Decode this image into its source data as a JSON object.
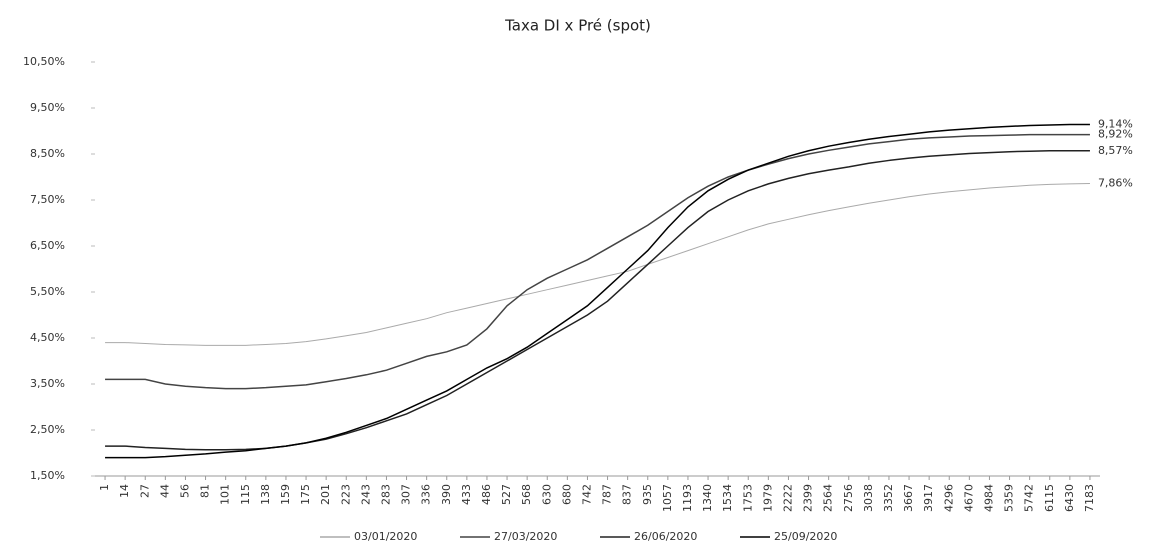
{
  "chart_data": {
    "type": "line",
    "title": "Taxa DI x Pré (spot)",
    "categories": [
      "1",
      "14",
      "27",
      "44",
      "56",
      "81",
      "101",
      "115",
      "138",
      "159",
      "175",
      "201",
      "223",
      "243",
      "283",
      "307",
      "336",
      "390",
      "433",
      "486",
      "527",
      "568",
      "630",
      "680",
      "742",
      "787",
      "837",
      "935",
      "1057",
      "1193",
      "1340",
      "1534",
      "1753",
      "1979",
      "2222",
      "2399",
      "2564",
      "2756",
      "3038",
      "3352",
      "3667",
      "3917",
      "4296",
      "4670",
      "4984",
      "5359",
      "5742",
      "6115",
      "6430",
      "7183"
    ],
    "ylim": [
      1.5,
      10.5
    ],
    "yticks": [
      {
        "value": 1.5,
        "label": "1,50%"
      },
      {
        "value": 2.5,
        "label": "2,50%"
      },
      {
        "value": 3.5,
        "label": "3,50%"
      },
      {
        "value": 4.5,
        "label": "4,50%"
      },
      {
        "value": 5.5,
        "label": "5,50%"
      },
      {
        "value": 6.5,
        "label": "6,50%"
      },
      {
        "value": 7.5,
        "label": "7,50%"
      },
      {
        "value": 8.5,
        "label": "8,50%"
      },
      {
        "value": 9.5,
        "label": "9,50%"
      },
      {
        "value": 10.5,
        "label": "10,50%"
      }
    ],
    "grid": false,
    "legend": "bottom",
    "series": [
      {
        "name": "03/01/2020",
        "color": "#aaaaaa",
        "values": [
          4.4,
          4.4,
          4.38,
          4.36,
          4.35,
          4.34,
          4.34,
          4.34,
          4.36,
          4.38,
          4.42,
          4.48,
          4.55,
          4.62,
          4.72,
          4.82,
          4.92,
          5.05,
          5.15,
          5.25,
          5.35,
          5.45,
          5.55,
          5.65,
          5.75,
          5.85,
          5.95,
          6.1,
          6.25,
          6.4,
          6.55,
          6.7,
          6.85,
          6.98,
          7.08,
          7.18,
          7.27,
          7.35,
          7.43,
          7.5,
          7.57,
          7.63,
          7.68,
          7.72,
          7.76,
          7.79,
          7.82,
          7.84,
          7.85,
          7.86
        ],
        "value_labels": [
          null,
          null,
          null,
          null,
          null,
          null,
          null,
          null,
          null,
          null,
          null,
          null,
          null,
          null,
          null,
          null,
          null,
          null,
          null,
          null,
          null,
          null,
          null,
          null,
          null,
          null,
          null,
          null,
          null,
          null,
          null,
          null,
          null,
          null,
          null,
          null,
          null,
          null,
          null,
          null,
          null,
          null,
          null,
          null,
          null,
          null,
          null,
          null,
          null,
          "7,86%"
        ]
      },
      {
        "name": "27/03/2020",
        "color": "#444444",
        "values": [
          3.6,
          3.6,
          3.6,
          3.5,
          3.45,
          3.42,
          3.4,
          3.4,
          3.42,
          3.45,
          3.48,
          3.55,
          3.62,
          3.7,
          3.8,
          3.95,
          4.1,
          4.2,
          4.35,
          4.7,
          5.2,
          5.55,
          5.8,
          6.0,
          6.2,
          6.45,
          6.7,
          6.95,
          7.25,
          7.55,
          7.8,
          8.0,
          8.15,
          8.28,
          8.4,
          8.5,
          8.58,
          8.65,
          8.72,
          8.77,
          8.82,
          8.85,
          8.87,
          8.89,
          8.9,
          8.91,
          8.92,
          8.92,
          8.92,
          8.92
        ],
        "value_labels": [
          null,
          null,
          null,
          null,
          null,
          null,
          null,
          null,
          null,
          null,
          null,
          null,
          null,
          null,
          null,
          null,
          null,
          null,
          null,
          null,
          null,
          null,
          null,
          null,
          null,
          null,
          null,
          null,
          null,
          null,
          null,
          null,
          null,
          null,
          null,
          null,
          null,
          null,
          null,
          null,
          null,
          null,
          null,
          null,
          null,
          null,
          null,
          null,
          null,
          "8,92%"
        ]
      },
      {
        "name": "26/06/2020",
        "color": "#222222",
        "values": [
          2.15,
          2.15,
          2.12,
          2.1,
          2.08,
          2.07,
          2.07,
          2.08,
          2.1,
          2.15,
          2.22,
          2.3,
          2.42,
          2.55,
          2.7,
          2.85,
          3.05,
          3.25,
          3.5,
          3.75,
          4.0,
          4.25,
          4.5,
          4.75,
          5.0,
          5.3,
          5.7,
          6.1,
          6.5,
          6.9,
          7.25,
          7.5,
          7.7,
          7.85,
          7.97,
          8.07,
          8.15,
          8.22,
          8.3,
          8.36,
          8.41,
          8.45,
          8.48,
          8.51,
          8.53,
          8.55,
          8.56,
          8.57,
          8.57,
          8.57
        ],
        "value_labels": [
          null,
          null,
          null,
          null,
          null,
          null,
          null,
          null,
          null,
          null,
          null,
          null,
          null,
          null,
          null,
          null,
          null,
          null,
          null,
          null,
          null,
          null,
          null,
          null,
          null,
          null,
          null,
          null,
          null,
          null,
          null,
          null,
          null,
          null,
          null,
          null,
          null,
          null,
          null,
          null,
          null,
          null,
          null,
          null,
          null,
          null,
          null,
          null,
          null,
          "8,57%"
        ]
      },
      {
        "name": "25/09/2020",
        "color": "#000000",
        "values": [
          1.9,
          1.9,
          1.9,
          1.92,
          1.95,
          1.98,
          2.02,
          2.05,
          2.1,
          2.15,
          2.22,
          2.32,
          2.45,
          2.6,
          2.75,
          2.95,
          3.15,
          3.35,
          3.6,
          3.85,
          4.05,
          4.3,
          4.6,
          4.9,
          5.2,
          5.6,
          6.0,
          6.4,
          6.9,
          7.35,
          7.7,
          7.95,
          8.15,
          8.3,
          8.45,
          8.57,
          8.67,
          8.75,
          8.82,
          8.88,
          8.93,
          8.98,
          9.02,
          9.05,
          9.08,
          9.1,
          9.12,
          9.13,
          9.14,
          9.14
        ],
        "value_labels": [
          null,
          null,
          null,
          null,
          null,
          null,
          null,
          null,
          null,
          null,
          null,
          null,
          null,
          null,
          null,
          null,
          null,
          null,
          null,
          null,
          null,
          null,
          null,
          null,
          null,
          null,
          null,
          null,
          null,
          null,
          null,
          null,
          null,
          null,
          null,
          null,
          null,
          null,
          null,
          null,
          null,
          null,
          null,
          null,
          null,
          null,
          null,
          null,
          null,
          "9,14%"
        ]
      }
    ]
  }
}
